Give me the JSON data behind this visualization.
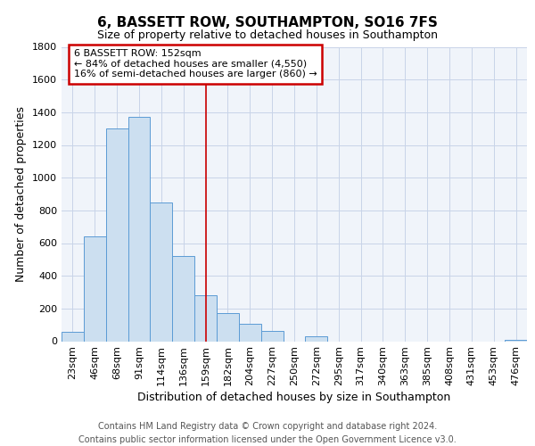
{
  "title": "6, BASSETT ROW, SOUTHAMPTON, SO16 7FS",
  "subtitle": "Size of property relative to detached houses in Southampton",
  "xlabel": "Distribution of detached houses by size in Southampton",
  "ylabel": "Number of detached properties",
  "categories": [
    "23sqm",
    "46sqm",
    "68sqm",
    "91sqm",
    "114sqm",
    "136sqm",
    "159sqm",
    "182sqm",
    "204sqm",
    "227sqm",
    "250sqm",
    "272sqm",
    "295sqm",
    "317sqm",
    "340sqm",
    "363sqm",
    "385sqm",
    "408sqm",
    "431sqm",
    "453sqm",
    "476sqm"
  ],
  "values": [
    55,
    640,
    1300,
    1370,
    850,
    520,
    280,
    170,
    105,
    65,
    0,
    30,
    0,
    0,
    0,
    0,
    0,
    0,
    0,
    0,
    10
  ],
  "bar_color": "#ccdff0",
  "bar_edge_color": "#5b9bd5",
  "bg_color": "#ffffff",
  "plot_bg_color": "#f0f4fa",
  "grid_color": "#c8d4e8",
  "vline_x_index": 6,
  "vline_color": "#cc0000",
  "annotation_line1": "6 BASSETT ROW: 152sqm",
  "annotation_line2": "← 84% of detached houses are smaller (4,550)",
  "annotation_line3": "16% of semi-detached houses are larger (860) →",
  "annotation_box_facecolor": "#ffffff",
  "annotation_box_edgecolor": "#cc0000",
  "ylim": [
    0,
    1800
  ],
  "yticks": [
    0,
    200,
    400,
    600,
    800,
    1000,
    1200,
    1400,
    1600,
    1800
  ],
  "footer": "Contains HM Land Registry data © Crown copyright and database right 2024.\nContains public sector information licensed under the Open Government Licence v3.0.",
  "title_fontsize": 11,
  "subtitle_fontsize": 9,
  "tick_fontsize": 8,
  "label_fontsize": 9,
  "annotation_fontsize": 8,
  "footer_fontsize": 7
}
